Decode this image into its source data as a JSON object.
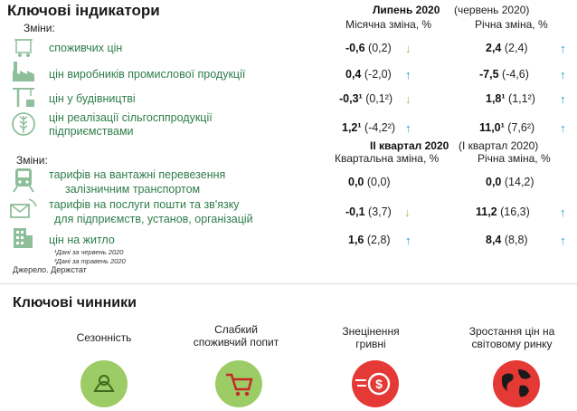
{
  "top": {
    "title": "Ключові індикатори",
    "changes_label": "Зміни:",
    "period_label": "Липень 2020",
    "period_compare": "(червень 2020)",
    "col_monthly": "Місячна зміна, %",
    "col_yearly": "Річна зміна, %",
    "rows": [
      {
        "label": "споживчих цін",
        "monthly_val": "-0,6",
        "monthly_prev": "(0,2)",
        "monthly_dir": "down",
        "yearly_val": "2,4",
        "yearly_prev": "(2,4)",
        "yearly_dir": "up",
        "icon": "shopping-cart-icon"
      },
      {
        "label": "цін виробників промислової продукції",
        "monthly_val": "0,4",
        "monthly_prev": "(-2,0)",
        "monthly_dir": "up",
        "yearly_val": "-7,5",
        "yearly_prev": "(-4,6)",
        "yearly_dir": "up",
        "icon": "factory-icon"
      },
      {
        "label": "цін у будівництві",
        "monthly_val": "-0,3¹",
        "monthly_prev": "(0,1²)",
        "monthly_dir": "down",
        "yearly_val": "1,8¹",
        "yearly_prev": "(1,1²)",
        "yearly_dir": "up",
        "icon": "crane-icon"
      },
      {
        "label1": "цін реалізації  сільгосппродукції",
        "label2": "підприємствами",
        "monthly_val": "1,2¹",
        "monthly_prev": "(-4,2²)",
        "monthly_dir": "up",
        "yearly_val": "11,0¹",
        "yearly_prev": "(7,6²)",
        "yearly_dir": "up",
        "icon": "wheat-icon"
      }
    ]
  },
  "tariffs": {
    "changes_label": "Зміни:",
    "period_label": "ІІ квартал 2020",
    "period_compare": "(І квартал 2020)",
    "col_quarterly": "Квартальна зміна, %",
    "col_yearly": "Річна зміна, %",
    "rows": [
      {
        "label1": "тарифів на вантажні перевезення",
        "label2": "залізничним транспортом",
        "q_val": "0,0",
        "q_prev": "(0,0)",
        "q_dir": "",
        "y_val": "0,0",
        "y_prev": "(14,2)",
        "y_dir": "",
        "icon": "train-icon"
      },
      {
        "label1": "тарифів на послуги пошти та зв'язку",
        "label2": "для підприємств, установ, організацій",
        "q_val": "-0,1",
        "q_prev": "(3,7)",
        "q_dir": "down",
        "y_val": "11,2",
        "y_prev": "(16,3)",
        "y_dir": "up",
        "icon": "mail-phone-icon"
      },
      {
        "label1": "цін на житло",
        "q_val": "1,6",
        "q_prev": "(2,8)",
        "q_dir": "up",
        "y_val": "8,4",
        "y_prev": "(8,8)",
        "y_dir": "up",
        "icon": "building-icon"
      }
    ],
    "note1": "¹Дані за червень 2020",
    "note2": "²Дані за травень 2020",
    "source": "Джерело. Держстат"
  },
  "factors": {
    "title": "Ключові чинники",
    "items": [
      {
        "label": "Сезонність",
        "color": "#9ccc65"
      },
      {
        "label1": "Слабкий",
        "label2": "споживчий попит",
        "color": "#9ccc65"
      },
      {
        "label1": "Знецінення",
        "label2": "гривні",
        "color": "#e53935"
      },
      {
        "label1": "Зростання цін на",
        "label2": "світовому ринку",
        "color": "#e53935"
      }
    ]
  },
  "colors": {
    "green": "#2e7d4a",
    "arrow_down": "#8bc34a",
    "arrow_up": "#2196c9",
    "icon_gray": "#a5d6a7"
  }
}
